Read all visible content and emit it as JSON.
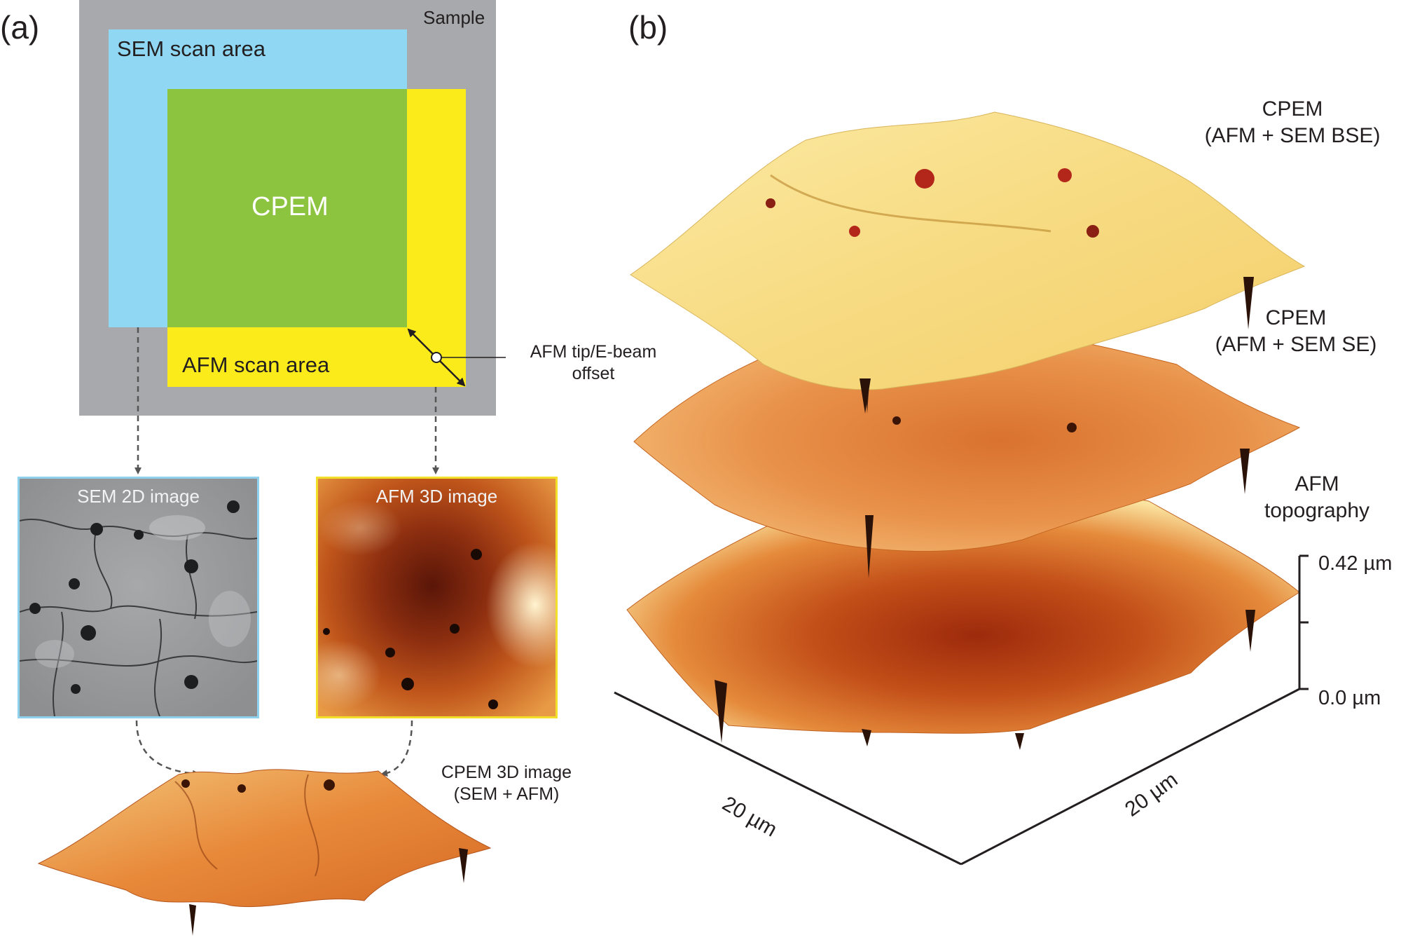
{
  "panel_a": {
    "label": "(a)",
    "sample_label": "Sample",
    "sem_scan_area": "SEM scan area",
    "afm_scan_area": "AFM scan area",
    "overlap_label": "CPEM",
    "offset_label_line1": "AFM tip/E-beam",
    "offset_label_line2": "offset",
    "sem_image_title": "SEM 2D image",
    "afm_image_title": "AFM 3D image",
    "cpem_result_line1": "CPEM 3D image",
    "cpem_result_line2": "(SEM + AFM)",
    "colors": {
      "sample": "#a7a9ac",
      "sem_area": "#8fd7f2",
      "afm_area": "#fbeb1b",
      "cpem_area": "#8cc43f"
    }
  },
  "panel_b": {
    "label": "(b)",
    "layer1_line1": "CPEM",
    "layer1_line2": "(AFM + SEM BSE)",
    "layer2_line1": "CPEM",
    "layer2_line2": "(AFM + SEM SE)",
    "layer3_line1": "AFM",
    "layer3_line2": "topography",
    "z_max": "0.42 µm",
    "z_min": "0.0 µm",
    "x_axis": "20 µm",
    "y_axis": "20 µm"
  }
}
